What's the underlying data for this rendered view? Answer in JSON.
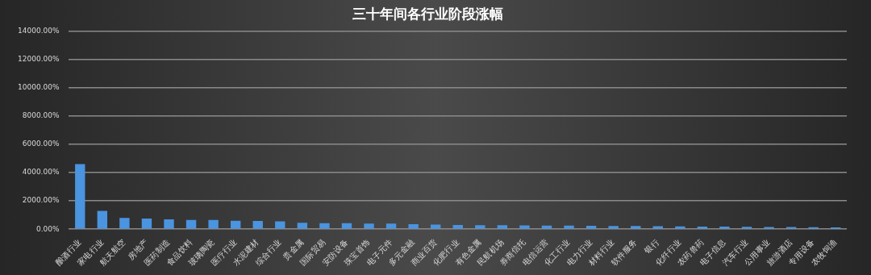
{
  "chart_data": {
    "type": "bar",
    "title": "三十年间各行业阶段涨幅",
    "categories": [
      "酿酒行业",
      "家电行业",
      "航天航空",
      "房地产",
      "医药制造",
      "食品饮料",
      "玻璃陶瓷",
      "医疗行业",
      "水泥建材",
      "综合行业",
      "贵金属",
      "国际贸易",
      "安防设备",
      "珠宝首饰",
      "电子元件",
      "多元金融",
      "商业百货",
      "化肥行业",
      "有色金属",
      "民航机场",
      "券商信托",
      "电信运营",
      "化工行业",
      "电力行业",
      "材料行业",
      "软件服务",
      "银行",
      "化纤行业",
      "农药兽药",
      "电子信息",
      "汽车行业",
      "公用事业",
      "旅游酒店",
      "专用设备",
      "农牧饲渔"
    ],
    "values": [
      4600,
      1300,
      800,
      750,
      700,
      650,
      650,
      600,
      580,
      550,
      450,
      420,
      420,
      400,
      400,
      350,
      330,
      300,
      290,
      280,
      270,
      260,
      250,
      240,
      230,
      220,
      210,
      200,
      190,
      180,
      170,
      160,
      150,
      140,
      120
    ],
    "color": "#4a94e0",
    "ylim": [
      0,
      14000
    ],
    "yticks": [
      {
        "value": 0,
        "label": "0.00%"
      },
      {
        "value": 2000,
        "label": "2000.00%"
      },
      {
        "value": 4000,
        "label": "4000.00%"
      },
      {
        "value": 6000,
        "label": "6000.00%"
      },
      {
        "value": 8000,
        "label": "8000.00%"
      },
      {
        "value": 10000,
        "label": "10000.00%"
      },
      {
        "value": 12000,
        "label": "12000.00%"
      },
      {
        "value": 14000,
        "label": "14000.00%"
      }
    ],
    "grid": "y",
    "legend": false
  }
}
